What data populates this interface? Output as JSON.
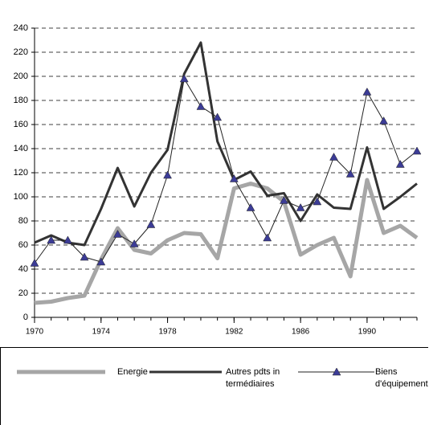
{
  "chart_data": {
    "type": "line",
    "x": [
      1970,
      1971,
      1972,
      1973,
      1974,
      1975,
      1976,
      1977,
      1978,
      1979,
      1980,
      1981,
      1982,
      1983,
      1984,
      1985,
      1986,
      1987,
      1988,
      1989,
      1990,
      1991,
      1992,
      1993
    ],
    "series": [
      {
        "name": "Energie",
        "color": "#a6a6a6",
        "values": [
          12,
          13,
          16,
          18,
          48,
          74,
          56,
          53,
          64,
          70,
          69,
          49,
          107,
          111,
          107,
          96,
          52,
          60,
          66,
          34,
          114,
          70,
          76,
          66
        ]
      },
      {
        "name": "Autres pdts intermédiaires",
        "color": "#333333",
        "values": [
          62,
          68,
          62,
          60,
          90,
          124,
          92,
          120,
          139,
          202,
          228,
          146,
          114,
          121,
          101,
          103,
          80,
          102,
          91,
          90,
          141,
          90,
          100,
          111
        ]
      },
      {
        "name": "Biens d'équipement",
        "color": "#222222",
        "marker_color": "#3c3c96",
        "values": [
          45,
          64,
          64,
          50,
          46,
          69,
          61,
          77,
          118,
          198,
          175,
          166,
          115,
          91,
          66,
          97,
          91,
          96,
          133,
          119,
          187,
          163,
          127,
          138
        ]
      }
    ],
    "xlim": [
      1970,
      1993
    ],
    "xticks": [
      1970,
      1974,
      1978,
      1982,
      1986,
      1990
    ],
    "ylim": [
      0,
      240
    ],
    "yticks": [
      0,
      20,
      40,
      60,
      80,
      100,
      120,
      140,
      160,
      180,
      200,
      220,
      240
    ],
    "grid": true
  }
}
